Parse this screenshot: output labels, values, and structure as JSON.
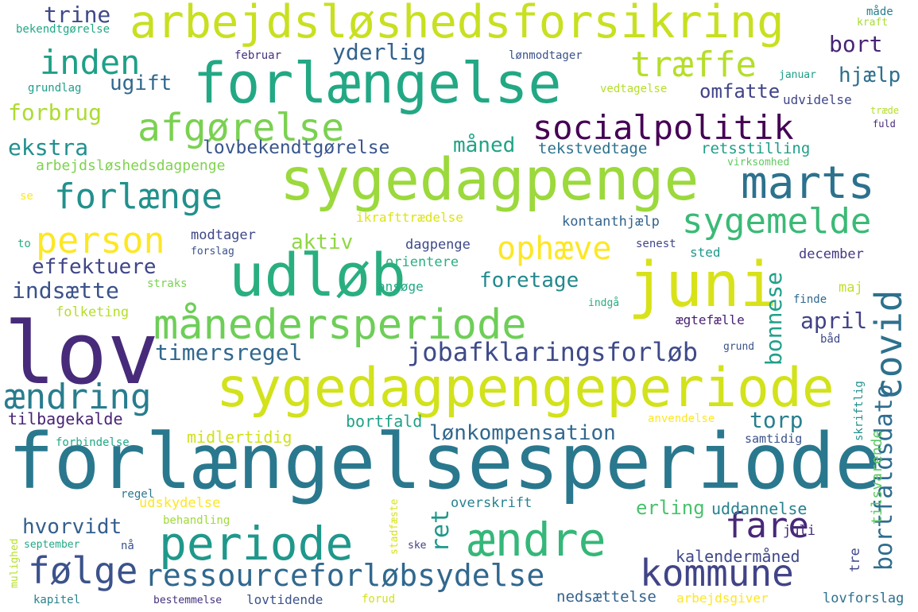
{
  "words": [
    "lov",
    "forlængelsesperiode",
    "sygedagpengeperiode",
    "sygedagpenge",
    "forlængelse",
    "arbejdsløshedsforsikring",
    "udløb",
    "juni",
    "månedersperiode",
    "marts",
    "periode",
    "ændre",
    "afgørelse",
    "socialpolitik",
    "person",
    "forlænge",
    "ændring",
    "følge",
    "ressourceforløbsydelse",
    "kommune",
    "sygemelde",
    "covid",
    "træffe",
    "inden",
    "fare",
    "jobafklaringsforløb",
    "ophæve",
    "bortfaldsdato",
    "trine",
    "yderlig",
    "bort",
    "hjælp",
    "ugift",
    "omfatte",
    "forbrug",
    "ekstra",
    "lovbekendtgørelse",
    "måned",
    "tekstvedtage",
    "retsstilling",
    "arbejdsløshedsdagpenge",
    "aktiv",
    "effektuere",
    "indsætte",
    "foretage",
    "april",
    "bonnese",
    "timersregel",
    "torp",
    "tilbagekalde",
    "midlertidig",
    "lønkompensation",
    "bortfald",
    "erling",
    "ret",
    "hvorvidt",
    "uddannelse",
    "overskrift",
    "kalendermåned",
    "nedsættelse",
    "lovforslag",
    "arbejdsgiver",
    "lovtidende",
    "bestemmelse",
    "kapitel",
    "forud",
    "tre",
    "skriftlig",
    "tilsvarende",
    "juli",
    "samtidig",
    "anvendelse",
    "modtager",
    "dagpenge",
    "orientere",
    "kontanthjælp",
    "ikrafttrædelse",
    "ansøge",
    "december",
    "sted",
    "maj",
    "ægtefælle",
    "indgå",
    "grund",
    "båd",
    "finde",
    "senest",
    "forslag",
    "straks",
    "folketing",
    "forbindelse",
    "regel",
    "udskydelse",
    "behandling",
    "september",
    "nå",
    "ske",
    "stadfæste",
    "mulighed",
    "bekendtgørelse",
    "februar",
    "lønmodtager",
    "grundlag",
    "vedtagelse",
    "udvidelse",
    "januar",
    "måde",
    "kraft",
    "træde",
    "fuld",
    "virksomhed",
    "se",
    "to"
  ]
}
